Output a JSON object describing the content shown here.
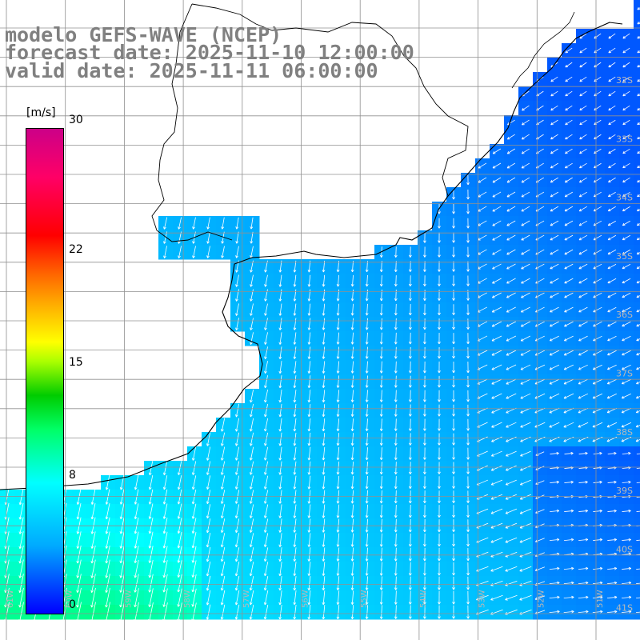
{
  "title": {
    "line1": "modelo GEFS-WAVE (NCEP)",
    "line2": "forecast date: 2025-11-10 12:00:00",
    "line3": "valid date: 2025-11-11 06:00:00"
  },
  "colorbar": {
    "unit": "[m/s]",
    "ticks": [
      "30",
      "22",
      "15",
      "8",
      "0"
    ],
    "tick_values": [
      30,
      22,
      15,
      8,
      0
    ],
    "range": [
      0,
      30
    ]
  },
  "lat_labels": [
    "32S",
    "33S",
    "34S",
    "35S",
    "36S",
    "37S",
    "38S",
    "39S",
    "40S",
    "41S"
  ],
  "lon_labels": [
    "61W",
    "60W",
    "59W",
    "58W",
    "57W",
    "56W",
    "55W",
    "54W",
    "53W",
    "52W",
    "51W"
  ],
  "colors": {
    "land": "#ffffff",
    "coast": "#000000",
    "grid": "#909090",
    "arrow": "#ffffff"
  }
}
